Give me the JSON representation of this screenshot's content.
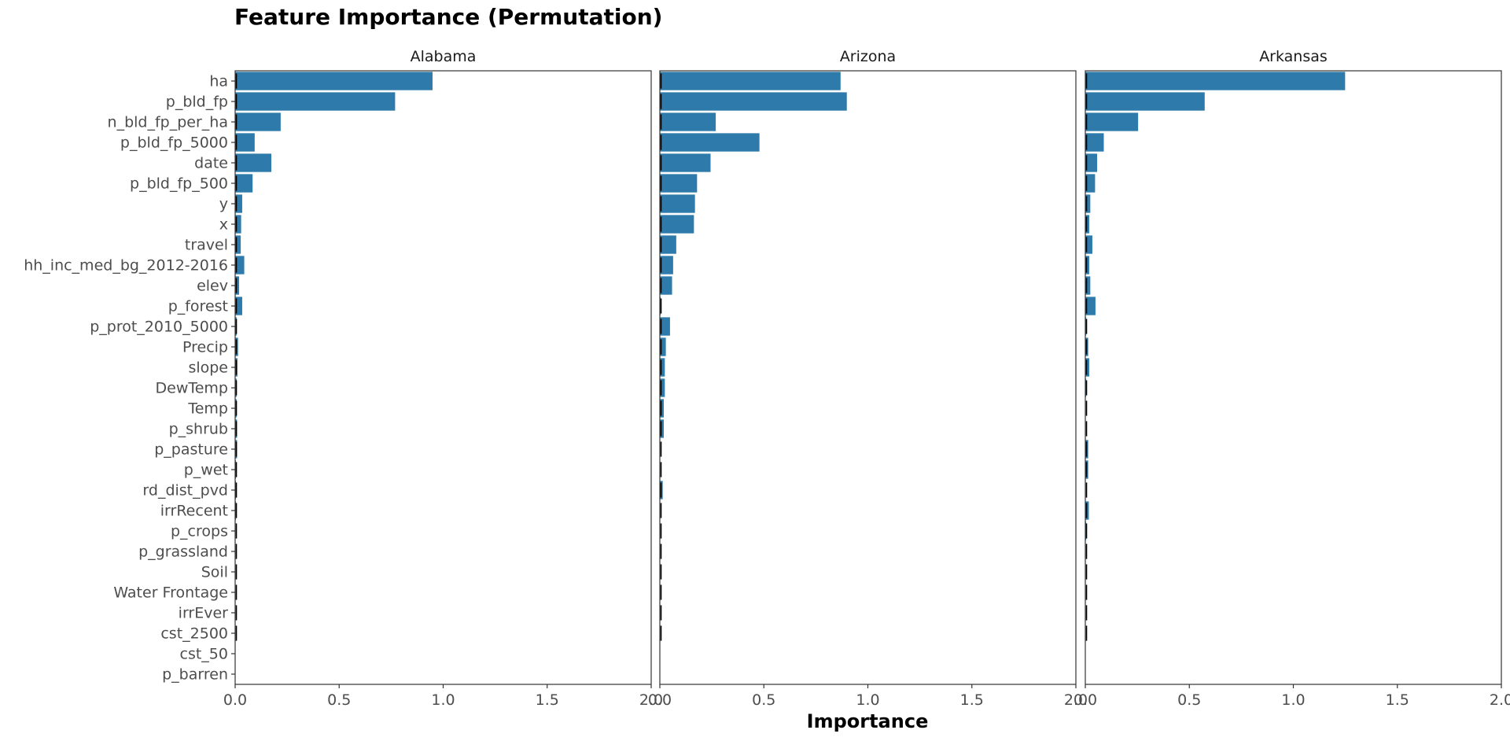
{
  "chart_data": {
    "type": "bar",
    "orientation": "horizontal",
    "title": "Feature Importance (Permutation)",
    "xlabel": "Importance",
    "ylabel": "",
    "xlim": [
      0,
      2
    ],
    "x_ticks": [
      "0.0",
      "0.5",
      "1.0",
      "1.5",
      "2.0"
    ],
    "grid": false,
    "bar_color": "#2E7BAB",
    "error_color": "#000000",
    "categories": [
      "ha",
      "p_bld_fp",
      "n_bld_fp_per_ha",
      "p_bld_fp_5000",
      "date",
      "p_bld_fp_500",
      "y",
      "x",
      "travel",
      "hh_inc_med_bg_2012-2016",
      "elev",
      "p_forest",
      "p_prot_2010_5000",
      "Precip",
      "slope",
      "DewTemp",
      "Temp",
      "p_shrub",
      "p_pasture",
      "p_wet",
      "rd_dist_pvd",
      "irrRecent",
      "p_crops",
      "p_grassland",
      "Soil",
      "Water Frontage",
      "irrEver",
      "cst_2500",
      "cst_50",
      "p_barren"
    ],
    "facets": [
      {
        "name": "Alabama",
        "values": [
          0.95,
          0.77,
          0.22,
          0.095,
          0.175,
          0.085,
          0.035,
          0.03,
          0.028,
          0.045,
          0.02,
          0.035,
          0.008,
          0.015,
          0.012,
          0.008,
          0.008,
          0.01,
          0.01,
          0.005,
          0.005,
          0.005,
          0.003,
          0.003,
          0.003,
          0.003,
          0.003,
          0.002,
          0.0,
          0.0
        ]
      },
      {
        "name": "Arizona",
        "values": [
          0.87,
          0.9,
          0.27,
          0.48,
          0.245,
          0.18,
          0.17,
          0.165,
          0.08,
          0.065,
          0.06,
          0.005,
          0.05,
          0.03,
          0.025,
          0.025,
          0.02,
          0.02,
          0.003,
          0.003,
          0.015,
          0.003,
          0.003,
          0.003,
          0.003,
          0.003,
          0.003,
          0.003,
          0.0,
          0.0
        ]
      },
      {
        "name": "Arkansas",
        "values": [
          1.25,
          0.575,
          0.255,
          0.09,
          0.058,
          0.048,
          0.025,
          0.02,
          0.035,
          0.02,
          0.025,
          0.05,
          0.005,
          0.015,
          0.02,
          0.005,
          0.003,
          0.003,
          0.015,
          0.015,
          0.003,
          0.018,
          0.005,
          0.003,
          0.003,
          0.003,
          0.003,
          0.003,
          0.0,
          0.0
        ]
      }
    ]
  }
}
